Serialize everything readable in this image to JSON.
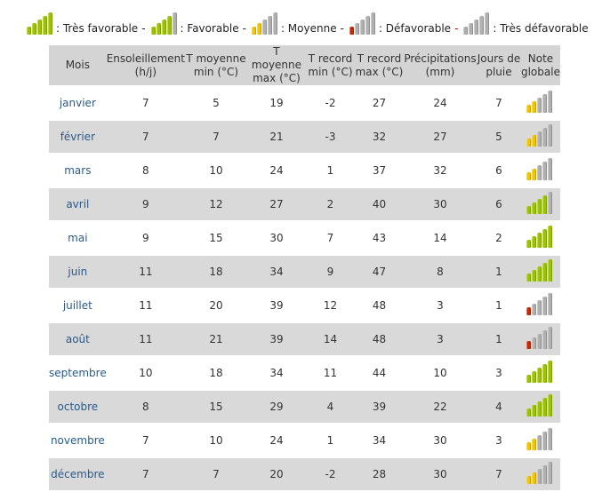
{
  "legend": {
    "items": [
      {
        "label": "Très favorable",
        "rating": "tres-favorable",
        "sep": "-"
      },
      {
        "label": "Favorable",
        "rating": "favorable",
        "sep": "-"
      },
      {
        "label": "Moyenne",
        "rating": "moyenne",
        "sep": "-"
      },
      {
        "label": "Défavorable",
        "rating": "defavorable",
        "sep": "-"
      },
      {
        "label": "Très défavorable",
        "rating": "tres-defavorable",
        "sep": ""
      }
    ]
  },
  "colors": {
    "green": "#9cc300",
    "yellow": "#f2c500",
    "red": "#c62800",
    "gray": "#b0b0b0",
    "header_bg": "#d4d4d4",
    "row_alt_bg": "#d9d9d9",
    "month_text": "#2a5a8a"
  },
  "table": {
    "headers": [
      {
        "line1": "Mois",
        "line2": ""
      },
      {
        "line1": "Ensoleillement",
        "line2": "(h/j)"
      },
      {
        "line1": "T moyenne",
        "line2": "min (°C)"
      },
      {
        "line1": "T moyenne",
        "line2": "max (°C)"
      },
      {
        "line1": "T record",
        "line2": "min (°C)"
      },
      {
        "line1": "T record",
        "line2": "max (°C)"
      },
      {
        "line1": "Précipitations",
        "line2": "(mm)"
      },
      {
        "line1": "Jours de",
        "line2": "pluie"
      },
      {
        "line1": "Note",
        "line2": "globale"
      }
    ],
    "rows": [
      {
        "month": "janvier",
        "sun": "7",
        "tmin": "5",
        "tmax": "19",
        "rmin": "-2",
        "rmax": "27",
        "precip": "24",
        "rain_days": "7",
        "rating": "moyenne"
      },
      {
        "month": "février",
        "sun": "7",
        "tmin": "7",
        "tmax": "21",
        "rmin": "-3",
        "rmax": "32",
        "precip": "27",
        "rain_days": "5",
        "rating": "moyenne"
      },
      {
        "month": "mars",
        "sun": "8",
        "tmin": "10",
        "tmax": "24",
        "rmin": "1",
        "rmax": "37",
        "precip": "32",
        "rain_days": "6",
        "rating": "moyenne"
      },
      {
        "month": "avril",
        "sun": "9",
        "tmin": "12",
        "tmax": "27",
        "rmin": "2",
        "rmax": "40",
        "precip": "30",
        "rain_days": "6",
        "rating": "favorable"
      },
      {
        "month": "mai",
        "sun": "9",
        "tmin": "15",
        "tmax": "30",
        "rmin": "7",
        "rmax": "43",
        "precip": "14",
        "rain_days": "2",
        "rating": "tres-favorable"
      },
      {
        "month": "juin",
        "sun": "11",
        "tmin": "18",
        "tmax": "34",
        "rmin": "9",
        "rmax": "47",
        "precip": "8",
        "rain_days": "1",
        "rating": "tres-favorable"
      },
      {
        "month": "juillet",
        "sun": "11",
        "tmin": "20",
        "tmax": "39",
        "rmin": "12",
        "rmax": "48",
        "precip": "3",
        "rain_days": "1",
        "rating": "defavorable"
      },
      {
        "month": "août",
        "sun": "11",
        "tmin": "21",
        "tmax": "39",
        "rmin": "14",
        "rmax": "48",
        "precip": "3",
        "rain_days": "1",
        "rating": "defavorable"
      },
      {
        "month": "septembre",
        "sun": "10",
        "tmin": "18",
        "tmax": "34",
        "rmin": "11",
        "rmax": "44",
        "precip": "10",
        "rain_days": "3",
        "rating": "tres-favorable"
      },
      {
        "month": "octobre",
        "sun": "8",
        "tmin": "15",
        "tmax": "29",
        "rmin": "4",
        "rmax": "39",
        "precip": "22",
        "rain_days": "4",
        "rating": "tres-favorable"
      },
      {
        "month": "novembre",
        "sun": "7",
        "tmin": "10",
        "tmax": "24",
        "rmin": "1",
        "rmax": "34",
        "precip": "30",
        "rain_days": "3",
        "rating": "moyenne"
      },
      {
        "month": "décembre",
        "sun": "7",
        "tmin": "7",
        "tmax": "20",
        "rmin": "-2",
        "rmax": "28",
        "precip": "30",
        "rain_days": "7",
        "rating": "moyenne"
      }
    ]
  }
}
